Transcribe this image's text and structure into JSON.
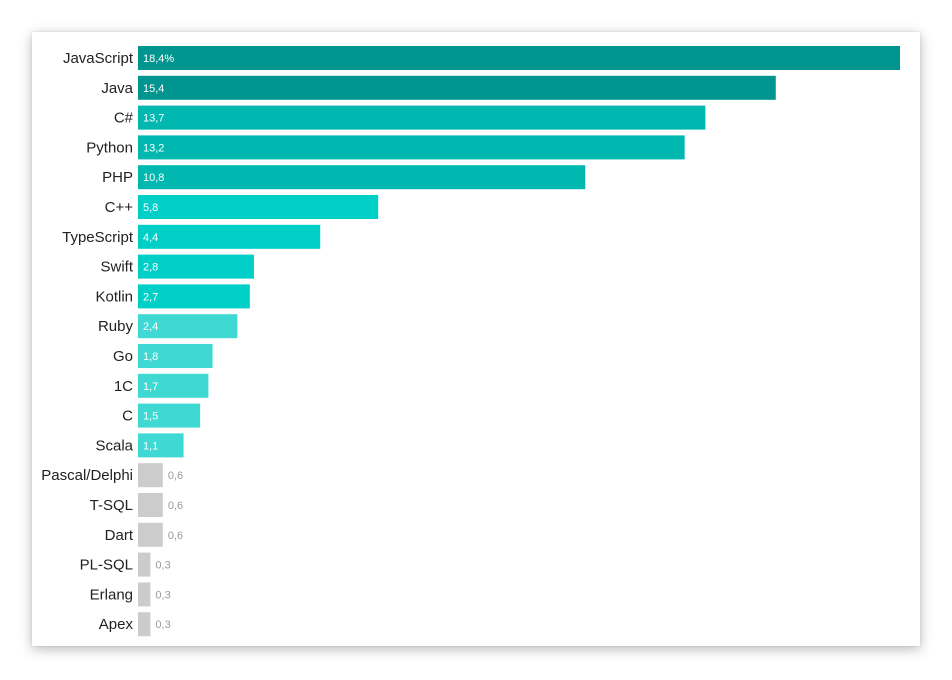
{
  "chart_data": {
    "type": "bar",
    "orientation": "horizontal",
    "title": "",
    "xlabel": "",
    "ylabel": "",
    "xlim": [
      0,
      18.4
    ],
    "grid": false,
    "legend": "none",
    "categories": [
      "JavaScript",
      "Java",
      "C#",
      "Python",
      "PHP",
      "C++",
      "TypeScript",
      "Swift",
      "Kotlin",
      "Ruby",
      "Go",
      "1C",
      "C",
      "Scala",
      "Pascal/Delphi",
      "T-SQL",
      "Dart",
      "PL-SQL",
      "Erlang",
      "Apex"
    ],
    "values": [
      18.4,
      15.4,
      13.7,
      13.2,
      10.8,
      5.8,
      4.4,
      2.8,
      2.7,
      2.4,
      1.8,
      1.7,
      1.5,
      1.1,
      0.6,
      0.6,
      0.6,
      0.3,
      0.3,
      0.3
    ],
    "value_labels": [
      "18,4%",
      "15,4",
      "13,7",
      "13,2",
      "10,8",
      "5,8",
      "4,4",
      "2,8",
      "2,7",
      "2,4",
      "1,8",
      "1,7",
      "1,5",
      "1,1",
      "0,6",
      "0,6",
      "0,6",
      "0,3",
      "0,3",
      "0,3"
    ],
    "colors": [
      "#00958f",
      "#00958f",
      "#00b8b0",
      "#00b8b0",
      "#00b8b0",
      "#00cfc7",
      "#00cfc7",
      "#00cfc7",
      "#00cfc7",
      "#3dd9d2",
      "#3dd9d2",
      "#3dd9d2",
      "#3dd9d2",
      "#3dd9d2",
      "#cccccc",
      "#cccccc",
      "#cccccc",
      "#cccccc",
      "#cccccc",
      "#cccccc"
    ],
    "label_color_inside": "#ffffff",
    "label_color_outside": "#9a9a9a"
  }
}
